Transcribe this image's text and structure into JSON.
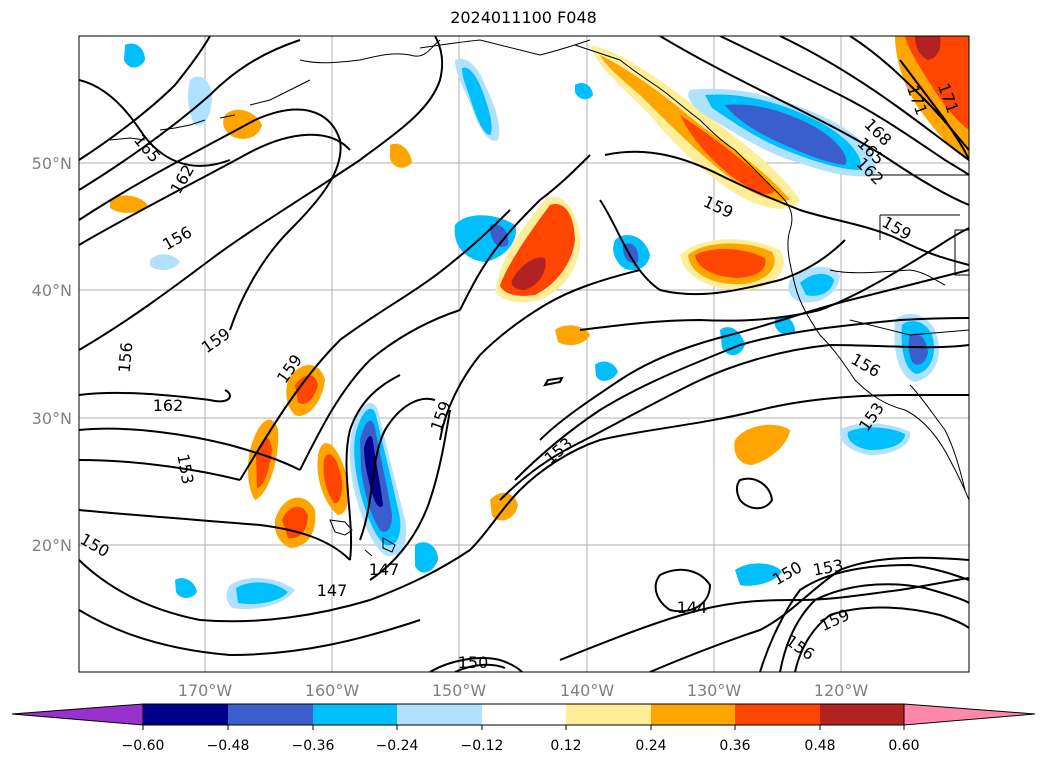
{
  "title": "2024011100 F048",
  "lat_labels": [
    "50°N",
    "40°N",
    "30°N",
    "20°N"
  ],
  "lon_labels": [
    "170°W",
    "160°W",
    "150°W",
    "140°W",
    "130°W",
    "120°W"
  ],
  "contour_labels": [
    "165",
    "162",
    "156",
    "159",
    "156",
    "162",
    "153",
    "159",
    "150",
    "147",
    "147",
    "150",
    "159",
    "153",
    "159",
    "144",
    "150",
    "153",
    "159",
    "156",
    "171",
    "171",
    "168",
    "165",
    "162",
    "159",
    "156",
    "153"
  ],
  "colorbar": {
    "ticks": [
      "−0.60",
      "−0.48",
      "−0.36",
      "−0.24",
      "−0.12",
      "0.12",
      "0.24",
      "0.36",
      "0.48",
      "0.60"
    ],
    "colors": [
      "#9932cc",
      "#00008b",
      "#3a5fcd",
      "#00bfff",
      "#b0e2ff",
      "#ffffff",
      "#ffee99",
      "#ffa500",
      "#ff4500",
      "#b22222",
      "#ff88aa"
    ]
  }
}
